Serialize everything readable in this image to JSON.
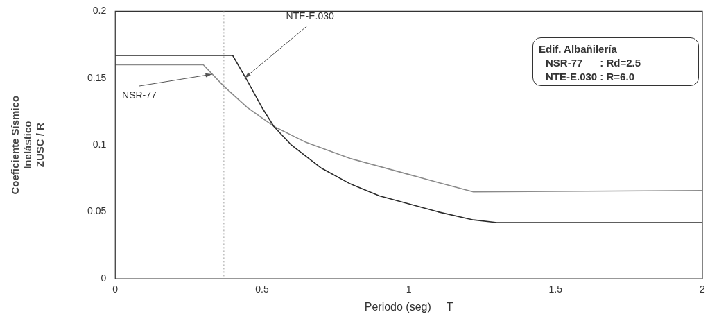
{
  "chart_data": {
    "type": "line",
    "xlabel": "Periodo (seg)     T",
    "ylabel": "Coeficiente Sísmico\nInelástico\nZUSC / R",
    "xlim": [
      0,
      2
    ],
    "xticks": [
      0,
      0.5,
      1,
      1.5,
      2
    ],
    "ylim": [
      0,
      0.2
    ],
    "yticks": [
      0,
      0.05,
      0.1,
      0.15,
      0.2
    ],
    "grid": false,
    "legend": false,
    "marker": "none",
    "series": [
      {
        "color": "#2a2a2a",
        "x": [
          0,
          0.4,
          0.45,
          0.5,
          0.54,
          0.6,
          0.7,
          0.8,
          0.9,
          1.0,
          1.1,
          1.22,
          1.3,
          2
        ],
        "values": [
          0.167,
          0.167,
          0.148,
          0.128,
          0.114,
          0.1,
          0.083,
          0.071,
          0.062,
          0.056,
          0.05,
          0.044,
          0.042,
          0.042
        ]
      },
      {
        "color": "#8a8a8a",
        "x": [
          0,
          0.3,
          0.37,
          0.45,
          0.54,
          0.65,
          0.8,
          1.0,
          1.1,
          1.22,
          2
        ],
        "values": [
          0.16,
          0.16,
          0.144,
          0.128,
          0.114,
          0.102,
          0.09,
          0.078,
          0.072,
          0.065,
          0.066
        ]
      }
    ],
    "ref_lines": [
      {
        "axis": "x",
        "value": 0.37,
        "color": "#999999",
        "line_style": "dotted"
      }
    ],
    "annotations": [
      {
        "text": "NTE-E.030",
        "x": 0.44,
        "y": 0.15
      },
      {
        "text": "NSR-77",
        "x": 0.33,
        "y": 0.153
      },
      "Edif. Albañilería",
      "NSR-77      : Rd=2.5",
      "NTE-E.030 : R=6.0"
    ]
  }
}
